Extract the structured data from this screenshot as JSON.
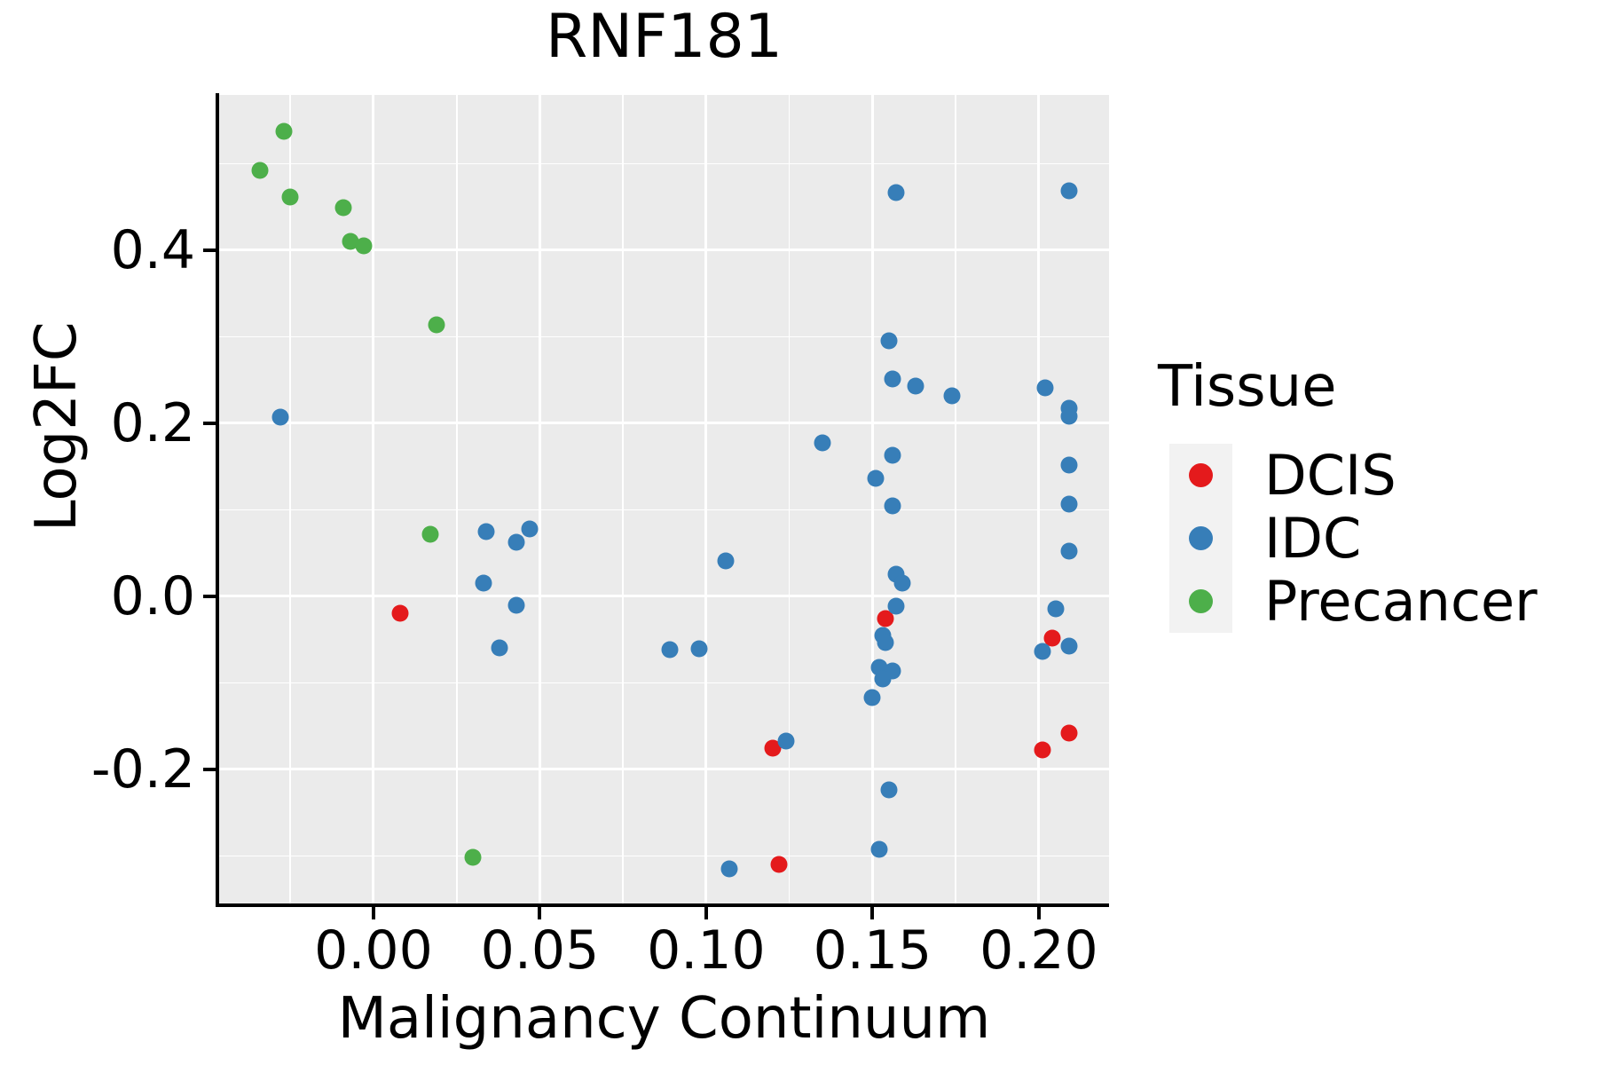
{
  "title": "RNF181",
  "colors": {
    "panel_background": "#EBEBEB",
    "gridline": "#ffffff",
    "axis": "#000000",
    "dcis_red": "#E41A1C",
    "idc_blue": "#377EB8",
    "precancer_green": "#4DAF4A",
    "legend_key_background": "#F2F2F2"
  },
  "chart_data": {
    "type": "scatter",
    "title": "RNF181",
    "xlabel": "Malignancy Continuum",
    "ylabel": "Log2FC",
    "xlim": [
      -0.0464,
      0.2211
    ],
    "ylim": [
      -0.357,
      0.5795
    ],
    "grid": true,
    "legend_position": "right",
    "legend_title": "Tissue",
    "x_ticks": [
      0.0,
      0.05,
      0.1,
      0.15,
      0.2
    ],
    "x_tick_labels": [
      "0.00",
      "0.05",
      "0.10",
      "0.15",
      "0.20"
    ],
    "x_minor_ticks": [
      -0.025,
      0.025,
      0.075,
      0.125,
      0.175
    ],
    "y_ticks": [
      0.4,
      0.2,
      0.0,
      -0.2
    ],
    "y_tick_labels": [
      "0.4",
      "0.2",
      "0.0",
      "-0.2"
    ],
    "y_minor_ticks": [
      0.5,
      0.3,
      0.1,
      -0.1,
      -0.3
    ],
    "series": [
      {
        "name": "DCIS",
        "color": "#E41A1C",
        "points": [
          [
            0.008,
            -0.02
          ],
          [
            0.154,
            -0.026
          ],
          [
            0.12,
            -0.175
          ],
          [
            0.122,
            -0.31
          ],
          [
            0.204,
            -0.048
          ],
          [
            0.209,
            -0.158
          ],
          [
            0.201,
            -0.177
          ]
        ]
      },
      {
        "name": "IDC",
        "color": "#377EB8",
        "points": [
          [
            -0.028,
            0.207
          ],
          [
            0.034,
            0.075
          ],
          [
            0.043,
            0.063
          ],
          [
            0.047,
            0.078
          ],
          [
            0.033,
            0.015
          ],
          [
            0.043,
            -0.01
          ],
          [
            0.038,
            -0.06
          ],
          [
            0.089,
            -0.062
          ],
          [
            0.098,
            -0.061
          ],
          [
            0.106,
            0.041
          ],
          [
            0.135,
            0.177
          ],
          [
            0.124,
            -0.167
          ],
          [
            0.107,
            -0.315
          ],
          [
            0.157,
            0.467
          ],
          [
            0.209,
            0.469
          ],
          [
            0.155,
            0.295
          ],
          [
            0.156,
            0.251
          ],
          [
            0.163,
            0.243
          ],
          [
            0.174,
            0.232
          ],
          [
            0.202,
            0.241
          ],
          [
            0.156,
            0.163
          ],
          [
            0.151,
            0.136
          ],
          [
            0.156,
            0.105
          ],
          [
            0.157,
            0.026
          ],
          [
            0.159,
            0.015
          ],
          [
            0.157,
            -0.011
          ],
          [
            0.153,
            -0.045
          ],
          [
            0.154,
            -0.053
          ],
          [
            0.152,
            -0.082
          ],
          [
            0.156,
            -0.086
          ],
          [
            0.153,
            -0.095
          ],
          [
            0.15,
            -0.117
          ],
          [
            0.155,
            -0.224
          ],
          [
            0.152,
            -0.292
          ],
          [
            0.209,
            0.217
          ],
          [
            0.209,
            0.208
          ],
          [
            0.209,
            0.152
          ],
          [
            0.209,
            0.107
          ],
          [
            0.209,
            0.052
          ],
          [
            0.205,
            -0.014
          ],
          [
            0.209,
            -0.057
          ],
          [
            0.201,
            -0.064
          ]
        ]
      },
      {
        "name": "Precancer",
        "color": "#4DAF4A",
        "points": [
          [
            -0.027,
            0.537
          ],
          [
            -0.034,
            0.492
          ],
          [
            -0.025,
            0.462
          ],
          [
            -0.009,
            0.449
          ],
          [
            -0.007,
            0.41
          ],
          [
            -0.003,
            0.405
          ],
          [
            0.019,
            0.314
          ],
          [
            0.017,
            0.072
          ],
          [
            0.03,
            -0.302
          ]
        ]
      }
    ]
  }
}
